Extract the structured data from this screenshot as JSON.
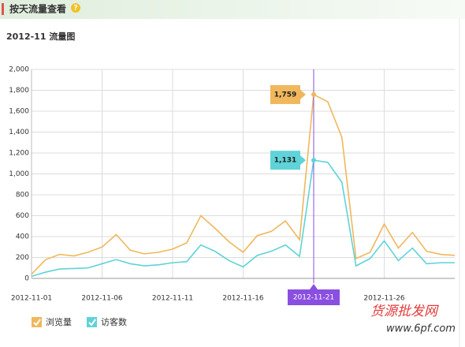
{
  "header": {
    "title": "按天流量查看"
  },
  "chart_data": {
    "type": "line",
    "title": "2012-11 流量图",
    "categories": [
      "2012-11-01",
      null,
      null,
      null,
      null,
      "2012-11-06",
      null,
      null,
      null,
      null,
      "2012-11-11",
      null,
      null,
      null,
      null,
      "2012-11-16",
      null,
      null,
      null,
      null,
      "2012-11-21",
      null,
      null,
      null,
      null,
      "2012-11-26",
      null,
      null,
      null,
      null,
      null
    ],
    "series": [
      {
        "name": "浏览量",
        "color": "#f0b75c",
        "values": [
          40,
          180,
          230,
          215,
          250,
          300,
          420,
          270,
          235,
          250,
          280,
          340,
          600,
          480,
          350,
          250,
          410,
          450,
          550,
          370,
          1759,
          1690,
          1350,
          190,
          250,
          520,
          290,
          440,
          260,
          230,
          220
        ],
        "value_labels": [
          null,
          null,
          null,
          null,
          null,
          null,
          null,
          null,
          null,
          null,
          null,
          null,
          null,
          null,
          null,
          null,
          null,
          null,
          null,
          null,
          "1,759",
          null,
          null,
          null,
          null,
          null,
          null,
          null,
          null,
          null,
          null
        ]
      },
      {
        "name": "访客数",
        "color": "#5fd3d8",
        "values": [
          20,
          60,
          90,
          95,
          100,
          140,
          180,
          140,
          120,
          130,
          150,
          160,
          320,
          260,
          170,
          110,
          220,
          260,
          320,
          210,
          1131,
          1110,
          920,
          120,
          190,
          360,
          170,
          290,
          140,
          150,
          150
        ],
        "value_labels": [
          null,
          null,
          null,
          null,
          null,
          null,
          null,
          null,
          null,
          null,
          null,
          null,
          null,
          null,
          null,
          null,
          null,
          null,
          null,
          null,
          "1,131",
          null,
          null,
          null,
          null,
          null,
          null,
          null,
          null,
          null,
          null
        ]
      }
    ],
    "highlight_index": 20,
    "highlight_color": "#8a4fe0",
    "ylim": [
      0,
      2000
    ],
    "yticks": [
      {
        "value": 0,
        "label": "0"
      },
      {
        "value": 200,
        "label": "200"
      },
      {
        "value": 400,
        "label": "400"
      },
      {
        "value": 600,
        "label": "600"
      },
      {
        "value": 800,
        "label": "800"
      },
      {
        "value": 1000,
        "label": "1,000"
      },
      {
        "value": 1200,
        "label": "1,200"
      },
      {
        "value": 1400,
        "label": "1,400"
      },
      {
        "value": 1600,
        "label": "1,600"
      },
      {
        "value": 1800,
        "label": "1,800"
      },
      {
        "value": 2000,
        "label": "2,000"
      }
    ],
    "grid": true,
    "legend": "bottom-left"
  },
  "watermark": {
    "title": "货源批发网",
    "url": "www.6pf.com"
  }
}
